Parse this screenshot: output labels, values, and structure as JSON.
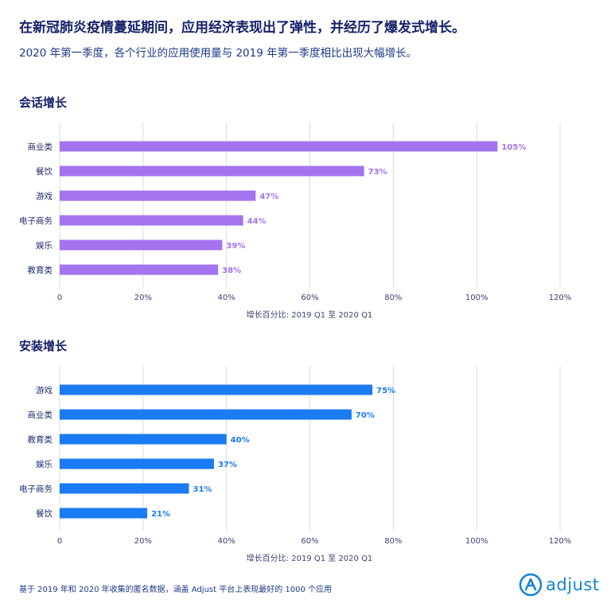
{
  "header": {
    "title": "在新冠肺炎疫情蔓延期间，应用经济表现出了弹性，并经历了爆发式增长。",
    "subtitle": "2020 年第一季度，各个行业的应用使用量与 2019 年第一季度相比出现大幅增长。"
  },
  "footer": {
    "note": "基于 2019 年和 2020 年收集的匿名数据，涵盖 Adjust 平台上表现最好的 1000 个应用",
    "logo_text": "adjust",
    "logo_icon": "adjust-logo-icon"
  },
  "colors": {
    "session_bar": "#a374ee",
    "install_bar": "#1a7bf2",
    "grid": "#d8dce6",
    "axis_text": "#3a4670"
  },
  "chart_data": [
    {
      "type": "bar",
      "orientation": "horizontal",
      "title": "会话增长",
      "categories": [
        "商业类",
        "餐饮",
        "游戏",
        "电子商务",
        "娱乐",
        "教育类"
      ],
      "values": [
        105,
        73,
        47,
        44,
        39,
        38
      ],
      "value_labels": [
        "105%",
        "73%",
        "47%",
        "44%",
        "39%",
        "38%"
      ],
      "xlabel": "增长百分比: 2019 Q1 至 2020 Q1",
      "xlim": [
        0,
        120
      ],
      "xticks": [
        "0",
        "20%",
        "40%",
        "60%",
        "80%",
        "100%",
        "120%"
      ],
      "grid": true
    },
    {
      "type": "bar",
      "orientation": "horizontal",
      "title": "安装增长",
      "categories": [
        "游戏",
        "商业类",
        "教育类",
        "娱乐",
        "电子商务",
        "餐饮"
      ],
      "values": [
        75,
        70,
        40,
        37,
        31,
        21
      ],
      "value_labels": [
        "75%",
        "70%",
        "40%",
        "37%",
        "31%",
        "21%"
      ],
      "xlabel": "增长百分比: 2019 Q1 至 2020 Q1",
      "xlim": [
        0,
        120
      ],
      "xticks": [
        "0",
        "20%",
        "40%",
        "60%",
        "80%",
        "100%",
        "120%"
      ],
      "grid": true
    }
  ]
}
